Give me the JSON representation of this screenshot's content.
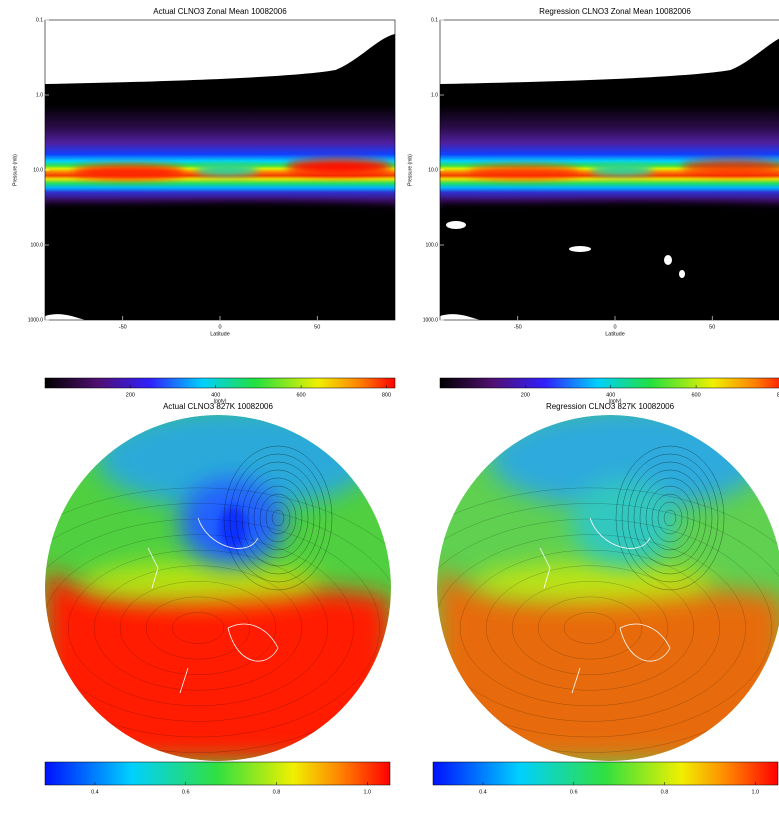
{
  "chart_data": [
    {
      "type": "zonal",
      "title": "Actual CLNO3 Zonal Mean 10082006",
      "xlabel": "Latitude",
      "ylabel": "Pressure (mb)",
      "xlim": [
        -90,
        90
      ],
      "xticks": [
        -50,
        0,
        50
      ],
      "ylim": [
        0.1,
        1000
      ],
      "log_y": true,
      "yticks": [
        {
          "value": 0.1,
          "label": "0.1"
        },
        {
          "value": 1,
          "label": "1.0"
        },
        {
          "value": 10,
          "label": "10.0"
        },
        {
          "value": 100,
          "label": "100.0"
        },
        {
          "value": 1000,
          "label": "1000.0"
        }
      ],
      "colorbar": {
        "lim": [
          0,
          820
        ],
        "ticks": [
          200,
          400,
          600,
          800
        ],
        "label": "(pptv)"
      }
    },
    {
      "type": "zonal",
      "title": "Regression CLNO3 Zonal Mean 10082006",
      "xlabel": "Latitude",
      "ylabel": "Pressure (mb)",
      "xlim": [
        -90,
        90
      ],
      "xticks": [
        -50,
        0,
        50
      ],
      "ylim": [
        0.1,
        1000
      ],
      "log_y": true,
      "yticks": [
        {
          "value": 0.1,
          "label": "0.1"
        },
        {
          "value": 1,
          "label": "1.0"
        },
        {
          "value": 10,
          "label": "10.0"
        },
        {
          "value": 100,
          "label": "100.0"
        },
        {
          "value": 1000,
          "label": "1000.0"
        }
      ],
      "colorbar": {
        "lim": [
          0,
          820
        ],
        "ticks": [
          200,
          400,
          600,
          800
        ],
        "label": "(pptv)"
      }
    },
    {
      "type": "polar",
      "title": "Actual CLNO3 827K 10082006",
      "colorbar": {
        "lim": [
          0.29,
          1.05
        ],
        "ticks": [
          0.4,
          0.6,
          0.8,
          {
            "value": 1,
            "label": "1.0"
          }
        ]
      }
    },
    {
      "type": "polar",
      "title": "Regression CLNO3 827K 10082006",
      "colorbar": {
        "lim": [
          0.29,
          1.05
        ],
        "ticks": [
          0.4,
          0.6,
          0.8,
          {
            "value": 1,
            "label": "1.0"
          }
        ]
      }
    }
  ]
}
